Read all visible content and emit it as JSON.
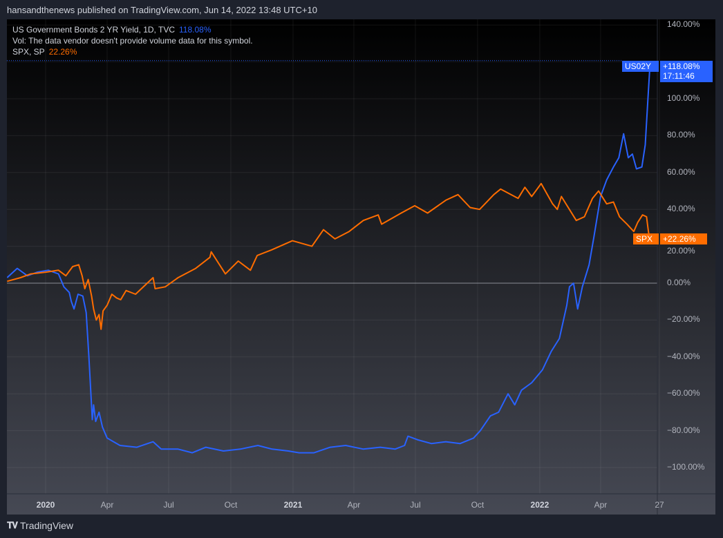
{
  "header": {
    "published": "hansandthenews published on TradingView.com, Jun 14, 2022 13:48 UTC+10"
  },
  "legend": {
    "line1": "US Government Bonds 2 YR Yield, 1D, TVC",
    "line1_value": "118.08%",
    "line2": "Vol: The data vendor doesn't provide volume data for this symbol.",
    "line3": "SPX, SP",
    "line3_value": "22.26%"
  },
  "tags": {
    "us02y_symbol": "US02Y",
    "us02y_value": "+118.08%",
    "us02y_time": "17:11:46",
    "spx_symbol": "SPX",
    "spx_value": "+22.26%"
  },
  "footer": {
    "brand": "TradingView",
    "logo_icon": "tradingview-logo-icon"
  },
  "colors": {
    "us02y": "#2962ff",
    "spx": "#ff6d00"
  },
  "chart_data": {
    "type": "line",
    "y_unit": "%",
    "ylim": [
      -110,
      145
    ],
    "y_ticks": [
      "140.00%",
      "100.00%",
      "80.00%",
      "60.00%",
      "40.00%",
      "20.00%",
      "0.00%",
      "−20.00%",
      "−40.00%",
      "−60.00%",
      "−80.00%",
      "−100.00%"
    ],
    "x_ticks": [
      {
        "label": "2020",
        "date": "2020-01-01",
        "bold": true
      },
      {
        "label": "Apr",
        "date": "2020-04-01"
      },
      {
        "label": "Jul",
        "date": "2020-07-01"
      },
      {
        "label": "Oct",
        "date": "2020-10-01"
      },
      {
        "label": "2021",
        "date": "2021-01-01",
        "bold": true
      },
      {
        "label": "Apr",
        "date": "2021-04-01"
      },
      {
        "label": "Jul",
        "date": "2021-07-01"
      },
      {
        "label": "Oct",
        "date": "2021-10-01"
      },
      {
        "label": "2022",
        "date": "2022-01-01",
        "bold": true
      },
      {
        "label": "Apr",
        "date": "2022-04-01"
      },
      {
        "label": "27",
        "date": "2022-06-27"
      }
    ],
    "grid": true,
    "series": [
      {
        "name": "US02Y",
        "color": "#2962ff",
        "points": [
          [
            "2019-11-05",
            3
          ],
          [
            "2019-11-20",
            8
          ],
          [
            "2019-12-05",
            4
          ],
          [
            "2019-12-20",
            6
          ],
          [
            "2020-01-05",
            7
          ],
          [
            "2020-01-20",
            5
          ],
          [
            "2020-01-28",
            -2
          ],
          [
            "2020-02-05",
            -5
          ],
          [
            "2020-02-08",
            -10
          ],
          [
            "2020-02-12",
            -14
          ],
          [
            "2020-02-18",
            -6
          ],
          [
            "2020-02-25",
            -7
          ],
          [
            "2020-03-01",
            -16
          ],
          [
            "2020-03-05",
            -40
          ],
          [
            "2020-03-08",
            -60
          ],
          [
            "2020-03-10",
            -74
          ],
          [
            "2020-03-12",
            -66
          ],
          [
            "2020-03-15",
            -75
          ],
          [
            "2020-03-20",
            -70
          ],
          [
            "2020-03-25",
            -78
          ],
          [
            "2020-04-01",
            -84
          ],
          [
            "2020-04-20",
            -88
          ],
          [
            "2020-05-15",
            -89
          ],
          [
            "2020-06-08",
            -86
          ],
          [
            "2020-06-20",
            -90
          ],
          [
            "2020-07-15",
            -90
          ],
          [
            "2020-08-05",
            -92
          ],
          [
            "2020-08-25",
            -89
          ],
          [
            "2020-09-20",
            -91
          ],
          [
            "2020-10-15",
            -90
          ],
          [
            "2020-11-10",
            -88
          ],
          [
            "2020-12-01",
            -90
          ],
          [
            "2020-12-25",
            -91
          ],
          [
            "2021-01-10",
            -92
          ],
          [
            "2021-02-01",
            -92
          ],
          [
            "2021-02-25",
            -89
          ],
          [
            "2021-03-20",
            -88
          ],
          [
            "2021-04-15",
            -90
          ],
          [
            "2021-05-10",
            -89
          ],
          [
            "2021-06-01",
            -90
          ],
          [
            "2021-06-15",
            -88
          ],
          [
            "2021-06-20",
            -83
          ],
          [
            "2021-07-05",
            -85
          ],
          [
            "2021-07-25",
            -87
          ],
          [
            "2021-08-15",
            -86
          ],
          [
            "2021-09-05",
            -87
          ],
          [
            "2021-09-25",
            -84
          ],
          [
            "2021-10-05",
            -80
          ],
          [
            "2021-10-20",
            -72
          ],
          [
            "2021-11-01",
            -70
          ],
          [
            "2021-11-15",
            -60
          ],
          [
            "2021-11-25",
            -66
          ],
          [
            "2021-12-05",
            -58
          ],
          [
            "2021-12-20",
            -54
          ],
          [
            "2022-01-05",
            -47
          ],
          [
            "2022-01-18",
            -37
          ],
          [
            "2022-01-30",
            -30
          ],
          [
            "2022-02-10",
            -12
          ],
          [
            "2022-02-14",
            -2
          ],
          [
            "2022-02-20",
            0
          ],
          [
            "2022-02-26",
            -14
          ],
          [
            "2022-03-05",
            -2
          ],
          [
            "2022-03-15",
            10
          ],
          [
            "2022-03-22",
            25
          ],
          [
            "2022-04-01",
            47
          ],
          [
            "2022-04-10",
            56
          ],
          [
            "2022-04-20",
            63
          ],
          [
            "2022-04-28",
            68
          ],
          [
            "2022-05-05",
            81
          ],
          [
            "2022-05-12",
            68
          ],
          [
            "2022-05-18",
            70
          ],
          [
            "2022-05-24",
            62
          ],
          [
            "2022-06-01",
            63
          ],
          [
            "2022-06-06",
            75
          ],
          [
            "2022-06-10",
            100
          ],
          [
            "2022-06-13",
            118
          ]
        ]
      },
      {
        "name": "SPX",
        "color": "#ff6d00",
        "points": [
          [
            "2019-11-05",
            1
          ],
          [
            "2019-11-25",
            3
          ],
          [
            "2019-12-10",
            5
          ],
          [
            "2020-01-02",
            6
          ],
          [
            "2020-01-20",
            7
          ],
          [
            "2020-01-31",
            4
          ],
          [
            "2020-02-10",
            9
          ],
          [
            "2020-02-19",
            10
          ],
          [
            "2020-02-24",
            4
          ],
          [
            "2020-02-28",
            -3
          ],
          [
            "2020-03-04",
            2
          ],
          [
            "2020-03-09",
            -7
          ],
          [
            "2020-03-12",
            -14
          ],
          [
            "2020-03-16",
            -20
          ],
          [
            "2020-03-20",
            -17
          ],
          [
            "2020-03-23",
            -25
          ],
          [
            "2020-03-26",
            -15
          ],
          [
            "2020-04-01",
            -12
          ],
          [
            "2020-04-08",
            -6
          ],
          [
            "2020-04-15",
            -8
          ],
          [
            "2020-04-21",
            -9
          ],
          [
            "2020-04-29",
            -4
          ],
          [
            "2020-05-13",
            -6
          ],
          [
            "2020-06-08",
            3
          ],
          [
            "2020-06-11",
            -3
          ],
          [
            "2020-06-26",
            -2
          ],
          [
            "2020-07-15",
            3
          ],
          [
            "2020-08-10",
            8
          ],
          [
            "2020-08-31",
            14
          ],
          [
            "2020-09-02",
            17
          ],
          [
            "2020-09-23",
            5
          ],
          [
            "2020-10-12",
            12
          ],
          [
            "2020-10-30",
            7
          ],
          [
            "2020-11-09",
            15
          ],
          [
            "2020-11-30",
            18
          ],
          [
            "2020-12-31",
            23
          ],
          [
            "2021-01-29",
            20
          ],
          [
            "2021-02-15",
            29
          ],
          [
            "2021-03-04",
            24
          ],
          [
            "2021-03-25",
            28
          ],
          [
            "2021-04-15",
            34
          ],
          [
            "2021-05-07",
            37
          ],
          [
            "2021-05-12",
            32
          ],
          [
            "2021-06-10",
            38
          ],
          [
            "2021-06-30",
            42
          ],
          [
            "2021-07-19",
            38
          ],
          [
            "2021-08-15",
            45
          ],
          [
            "2021-09-02",
            48
          ],
          [
            "2021-09-20",
            41
          ],
          [
            "2021-10-04",
            40
          ],
          [
            "2021-10-25",
            48
          ],
          [
            "2021-11-04",
            51
          ],
          [
            "2021-11-30",
            46
          ],
          [
            "2021-12-10",
            52
          ],
          [
            "2021-12-20",
            47
          ],
          [
            "2022-01-03",
            54
          ],
          [
            "2022-01-20",
            43
          ],
          [
            "2022-01-27",
            40
          ],
          [
            "2022-02-02",
            47
          ],
          [
            "2022-02-24",
            34
          ],
          [
            "2022-03-08",
            36
          ],
          [
            "2022-03-20",
            46
          ],
          [
            "2022-03-29",
            50
          ],
          [
            "2022-04-10",
            43
          ],
          [
            "2022-04-20",
            44
          ],
          [
            "2022-04-29",
            36
          ],
          [
            "2022-05-10",
            32
          ],
          [
            "2022-05-20",
            28
          ],
          [
            "2022-05-26",
            33
          ],
          [
            "2022-06-02",
            37
          ],
          [
            "2022-06-08",
            36
          ],
          [
            "2022-06-10",
            30
          ],
          [
            "2022-06-13",
            22
          ]
        ]
      }
    ]
  }
}
